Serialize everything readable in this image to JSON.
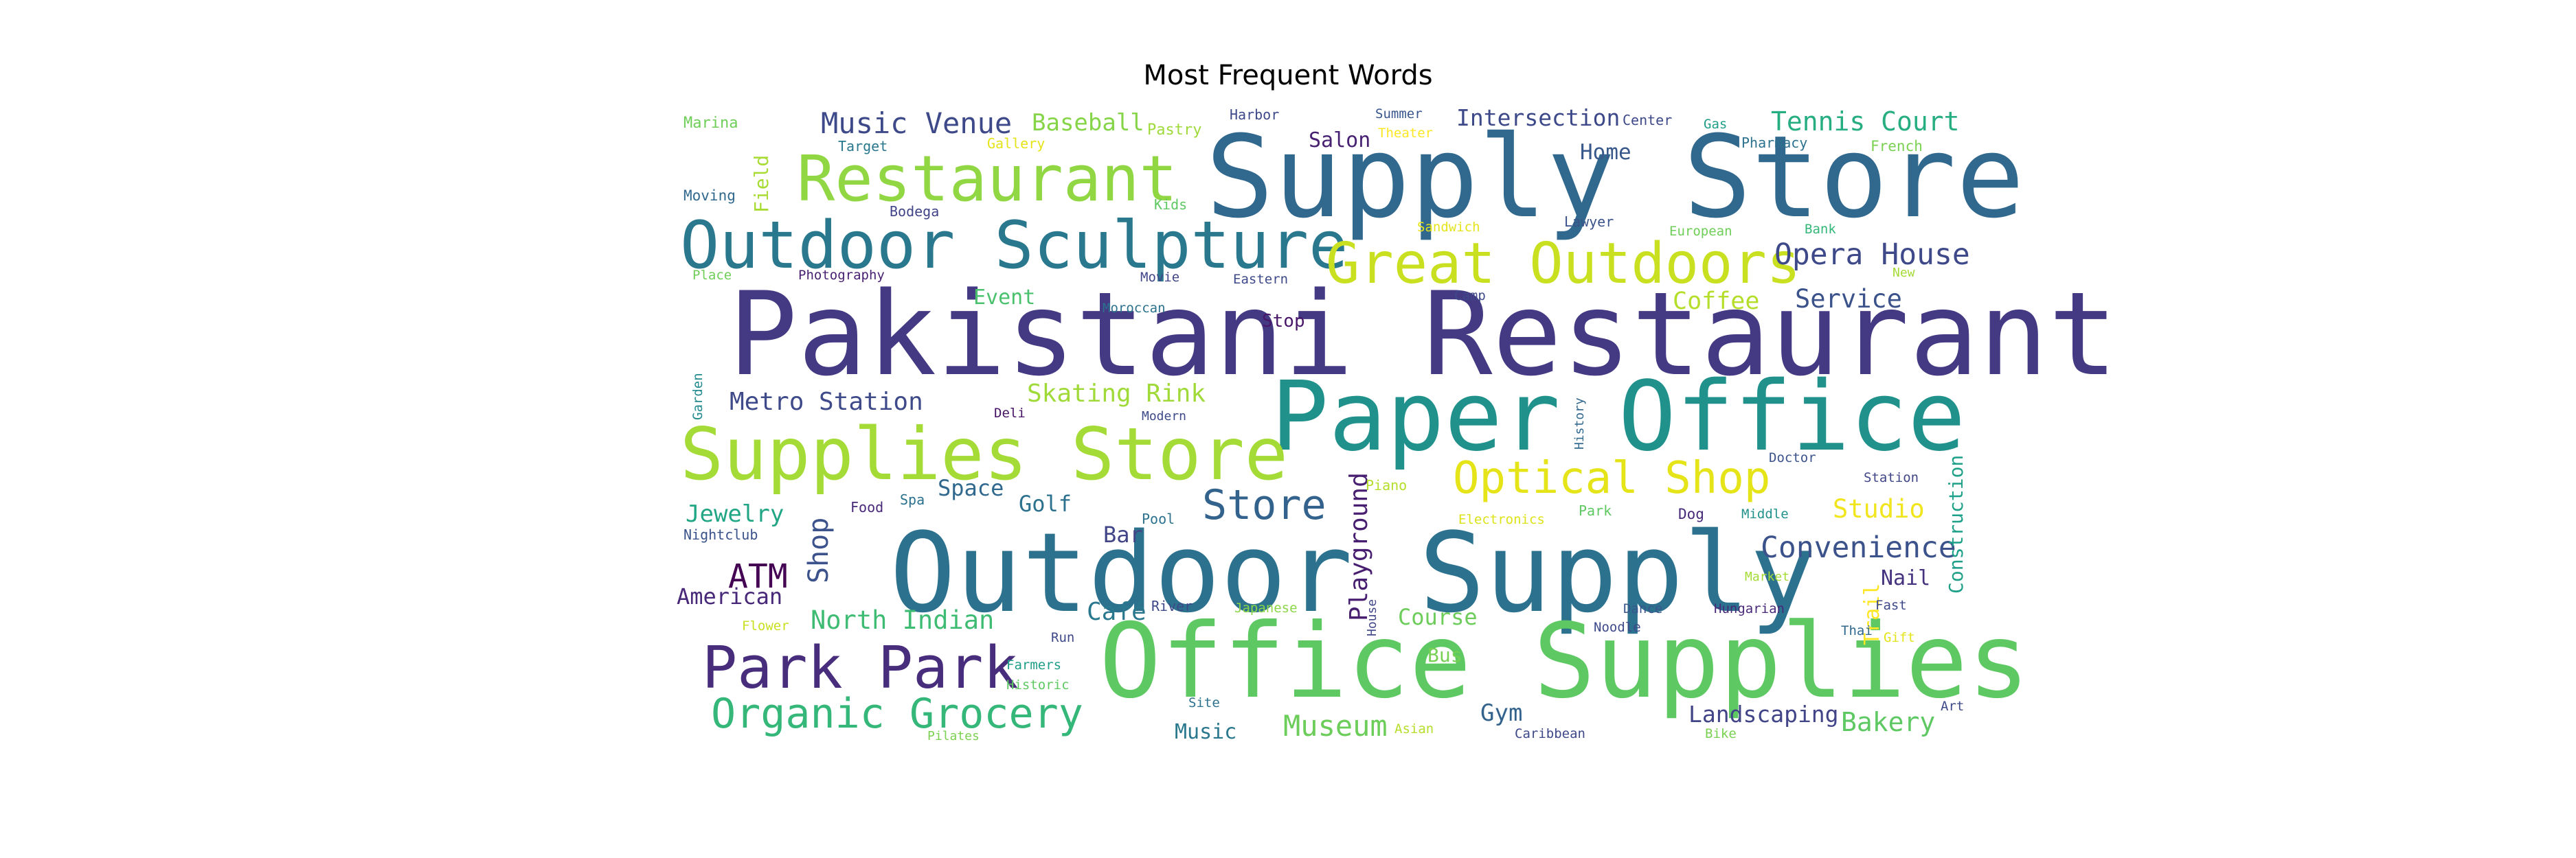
{
  "chart_data": {
    "type": "wordcloud",
    "title": "Most Frequent Words",
    "colormap": "viridis",
    "background": "#ffffff",
    "words": [
      {
        "text": "Pakistani Restaurant",
        "weight": 1.0,
        "color": "#443983"
      },
      {
        "text": "Supply Store",
        "weight": 0.92,
        "color": "#31688e"
      },
      {
        "text": "Outdoor Supply",
        "weight": 0.88,
        "color": "#2c728e"
      },
      {
        "text": "Office Supplies",
        "weight": 0.86,
        "color": "#5ec962"
      },
      {
        "text": "Paper Office",
        "weight": 0.8,
        "color": "#21918c"
      },
      {
        "text": "Supplies Store",
        "weight": 0.62,
        "color": "#a5db36"
      },
      {
        "text": "Restaurant",
        "weight": 0.56,
        "color": "#90d743"
      },
      {
        "text": "Outdoor Sculpture",
        "weight": 0.54,
        "color": "#2a788e"
      },
      {
        "text": "Great Outdoors",
        "weight": 0.48,
        "color": "#c8e020"
      },
      {
        "text": "Park Park",
        "weight": 0.5,
        "color": "#472d7b"
      },
      {
        "text": "Organic Grocery",
        "weight": 0.4,
        "color": "#35b779"
      },
      {
        "text": "Optical Shop",
        "weight": 0.4,
        "color": "#e5e419"
      },
      {
        "text": "Store",
        "weight": 0.4,
        "color": "#33638d"
      },
      {
        "text": "Playground",
        "weight": 0.3,
        "color": "#481f70"
      },
      {
        "text": "ATM",
        "weight": 0.32,
        "color": "#440154"
      },
      {
        "text": "Shop",
        "weight": 0.3,
        "color": "#3b528b"
      },
      {
        "text": "Opera House",
        "weight": 0.28,
        "color": "#3e4989"
      },
      {
        "text": "Convenience",
        "weight": 0.28,
        "color": "#3b528b"
      },
      {
        "text": "Museum",
        "weight": 0.27,
        "color": "#6ccd5a"
      },
      {
        "text": "Bakery",
        "weight": 0.26,
        "color": "#5ec962"
      },
      {
        "text": "Metro Station",
        "weight": 0.27,
        "color": "#3e4a89"
      },
      {
        "text": "Skating Rink",
        "weight": 0.26,
        "color": "#a0da39"
      },
      {
        "text": "Music Venue",
        "weight": 0.27,
        "color": "#3e4989"
      },
      {
        "text": "Tennis Court",
        "weight": 0.26,
        "color": "#26ad81"
      },
      {
        "text": "North Indian",
        "weight": 0.26,
        "color": "#3fbc73"
      },
      {
        "text": "Landscaping",
        "weight": 0.23,
        "color": "#414487"
      },
      {
        "text": "Studio",
        "weight": 0.26,
        "color": "#f1e51d"
      },
      {
        "text": "Service",
        "weight": 0.25,
        "color": "#3b528b"
      },
      {
        "text": "Coffee",
        "weight": 0.24,
        "color": "#b5de2b"
      },
      {
        "text": "Jewelry",
        "weight": 0.24,
        "color": "#21a685"
      },
      {
        "text": "American",
        "weight": 0.22,
        "color": "#482878"
      },
      {
        "text": "Intersection",
        "weight": 0.22,
        "color": "#3e4989"
      },
      {
        "text": "Course",
        "weight": 0.22,
        "color": "#6ccd5a"
      },
      {
        "text": "Café",
        "weight": 0.26,
        "color": "#2a788e"
      },
      {
        "text": "Baseball",
        "weight": 0.24,
        "color": "#86d549"
      },
      {
        "text": "Field",
        "weight": 0.21,
        "color": "#a8db34"
      },
      {
        "text": "Construction",
        "weight": 0.2,
        "color": "#1fa088"
      },
      {
        "text": "Trail",
        "weight": 0.21,
        "color": "#fde725"
      },
      {
        "text": "Space",
        "weight": 0.2,
        "color": "#31688e"
      },
      {
        "text": "Golf",
        "weight": 0.2,
        "color": "#2c728e"
      },
      {
        "text": "Bar",
        "weight": 0.2,
        "color": "#414487"
      },
      {
        "text": "Gym",
        "weight": 0.22,
        "color": "#33638d"
      },
      {
        "text": "Event",
        "weight": 0.2,
        "color": "#4ac16d"
      },
      {
        "text": "Home",
        "weight": 0.2,
        "color": "#38588c"
      },
      {
        "text": "Salon",
        "weight": 0.2,
        "color": "#482173"
      },
      {
        "text": "Nail",
        "weight": 0.2,
        "color": "#46337f"
      },
      {
        "text": "Music",
        "weight": 0.18,
        "color": "#2a788e"
      },
      {
        "text": "Bus",
        "weight": 0.18,
        "color": "#75d054"
      },
      {
        "text": "Stop",
        "weight": 0.16,
        "color": "#481769"
      },
      {
        "text": "Marina",
        "weight": 0.12,
        "color": "#6ece58"
      },
      {
        "text": "Target",
        "weight": 0.12,
        "color": "#2a788e"
      },
      {
        "text": "Gallery",
        "weight": 0.12,
        "color": "#e5e419"
      },
      {
        "text": "Pastry",
        "weight": 0.13,
        "color": "#9fda3a"
      },
      {
        "text": "Harbor",
        "weight": 0.12,
        "color": "#3e4989"
      },
      {
        "text": "Summer",
        "weight": 0.12,
        "color": "#39568c"
      },
      {
        "text": "Theater",
        "weight": 0.12,
        "color": "#fde725"
      },
      {
        "text": "Center",
        "weight": 0.12,
        "color": "#3e4989"
      },
      {
        "text": "Gas",
        "weight": 0.11,
        "color": "#1f9e89"
      },
      {
        "text": "Pharmacy",
        "weight": 0.12,
        "color": "#2c728e"
      },
      {
        "text": "French",
        "weight": 0.12,
        "color": "#7ad151"
      },
      {
        "text": "Moving",
        "weight": 0.12,
        "color": "#31688e"
      },
      {
        "text": "Bodega",
        "weight": 0.12,
        "color": "#414487"
      },
      {
        "text": "Kids",
        "weight": 0.12,
        "color": "#5ec962"
      },
      {
        "text": "Sandwich",
        "weight": 0.12,
        "color": "#e5e419"
      },
      {
        "text": "Lawyer",
        "weight": 0.12,
        "color": "#3b528b"
      },
      {
        "text": "European",
        "weight": 0.11,
        "color": "#6ece58"
      },
      {
        "text": "Bank",
        "weight": 0.11,
        "color": "#35b779"
      },
      {
        "text": "Place",
        "weight": 0.11,
        "color": "#6ece58"
      },
      {
        "text": "Photography",
        "weight": 0.11,
        "color": "#482173"
      },
      {
        "text": "Movie",
        "weight": 0.11,
        "color": "#404688"
      },
      {
        "text": "Eastern",
        "weight": 0.11,
        "color": "#3e4989"
      },
      {
        "text": "Moroccan",
        "weight": 0.11,
        "color": "#2c728e"
      },
      {
        "text": "Camp",
        "weight": 0.11,
        "color": "#3e4989"
      },
      {
        "text": "New",
        "weight": 0.1,
        "color": "#a5db36"
      },
      {
        "text": "Garden",
        "weight": 0.1,
        "color": "#238a8d"
      },
      {
        "text": "Deli",
        "weight": 0.11,
        "color": "#471365"
      },
      {
        "text": "Modern",
        "weight": 0.1,
        "color": "#3e4989"
      },
      {
        "text": "History",
        "weight": 0.1,
        "color": "#31688e"
      },
      {
        "text": "Doctor",
        "weight": 0.11,
        "color": "#3b528b"
      },
      {
        "text": "Station",
        "weight": 0.11,
        "color": "#404688"
      },
      {
        "text": "Food",
        "weight": 0.12,
        "color": "#482878"
      },
      {
        "text": "Spa",
        "weight": 0.12,
        "color": "#2c728e"
      },
      {
        "text": "Piano",
        "weight": 0.11,
        "color": "#b5de2b"
      },
      {
        "text": "Park",
        "weight": 0.11,
        "color": "#5ec962"
      },
      {
        "text": "Dog",
        "weight": 0.12,
        "color": "#472a7a"
      },
      {
        "text": "Middle",
        "weight": 0.11,
        "color": "#21918c"
      },
      {
        "text": "Nightclub",
        "weight": 0.11,
        "color": "#3b528b"
      },
      {
        "text": "Pool",
        "weight": 0.12,
        "color": "#2c728e"
      },
      {
        "text": "Electronics",
        "weight": 0.11,
        "color": "#dde318"
      },
      {
        "text": "Market",
        "weight": 0.1,
        "color": "#a5db36"
      },
      {
        "text": "House",
        "weight": 0.1,
        "color": "#404688"
      },
      {
        "text": "River",
        "weight": 0.12,
        "color": "#3e4989"
      },
      {
        "text": "Japanese",
        "weight": 0.11,
        "color": "#8bd646"
      },
      {
        "text": "Dance",
        "weight": 0.11,
        "color": "#39568c"
      },
      {
        "text": "Noodle",
        "weight": 0.11,
        "color": "#3e4989"
      },
      {
        "text": "Hungarian",
        "weight": 0.11,
        "color": "#482878"
      },
      {
        "text": "Fast",
        "weight": 0.11,
        "color": "#3e4989"
      },
      {
        "text": "Thai",
        "weight": 0.11,
        "color": "#31688e"
      },
      {
        "text": "Gift",
        "weight": 0.11,
        "color": "#e5e419"
      },
      {
        "text": "Flower",
        "weight": 0.11,
        "color": "#c8e020"
      },
      {
        "text": "Run",
        "weight": 0.11,
        "color": "#3e4989"
      },
      {
        "text": "Farmers",
        "weight": 0.11,
        "color": "#1f9e89"
      },
      {
        "text": "Historic",
        "weight": 0.11,
        "color": "#5ec962"
      },
      {
        "text": "Site",
        "weight": 0.11,
        "color": "#2c728e"
      },
      {
        "text": "Asian",
        "weight": 0.11,
        "color": "#b5de2b"
      },
      {
        "text": "Caribbean",
        "weight": 0.11,
        "color": "#3e4989"
      },
      {
        "text": "Bike",
        "weight": 0.11,
        "color": "#7ad151"
      },
      {
        "text": "Art",
        "weight": 0.11,
        "color": "#3e4989"
      },
      {
        "text": "Pilates",
        "weight": 0.1,
        "color": "#7ad151"
      }
    ]
  }
}
